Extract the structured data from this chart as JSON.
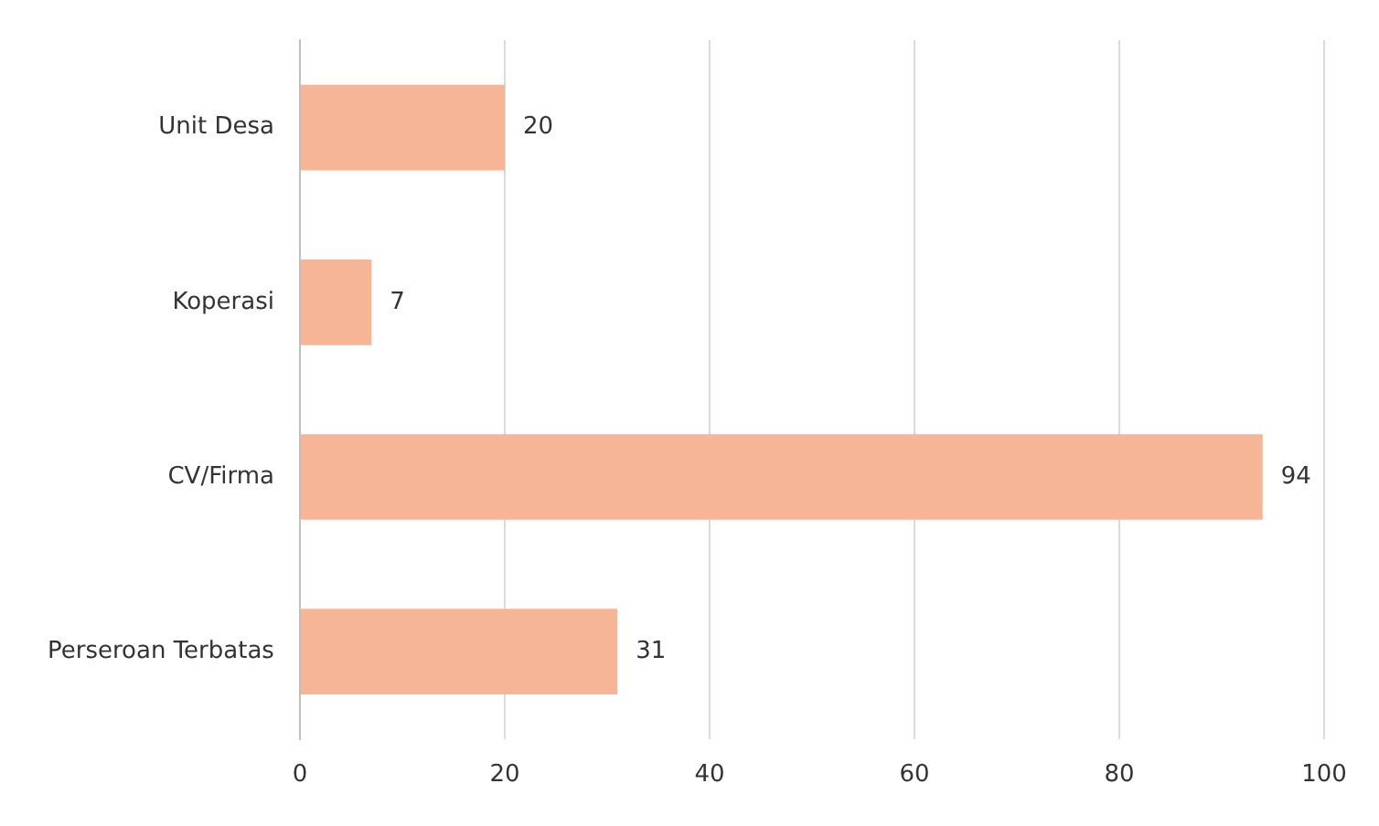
{
  "chart_data": {
    "type": "bar",
    "orientation": "horizontal",
    "categories": [
      "Unit Desa",
      "Koperasi",
      "CV/Firma",
      "Perseroan Terbatas"
    ],
    "values": [
      20,
      7,
      94,
      31
    ],
    "color": "#f5b596",
    "xlim": [
      0,
      100
    ],
    "xticks": [
      0,
      20,
      40,
      60,
      80,
      100
    ],
    "grid": "x",
    "data_labels": true,
    "legend": false
  }
}
